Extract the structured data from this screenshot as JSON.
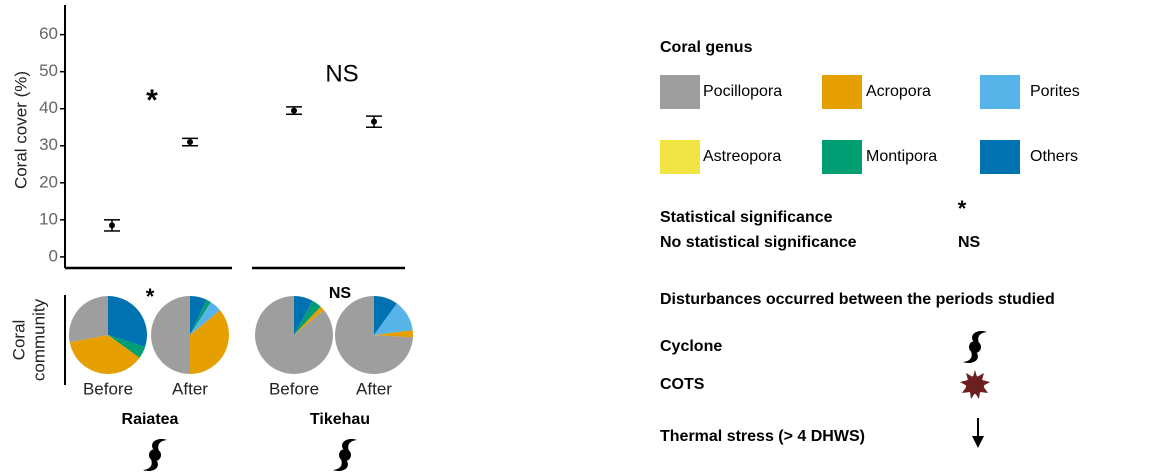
{
  "chart_data": [
    {
      "type": "errorbar",
      "ylabel": "Coral cover (%)",
      "ylim": [
        -3,
        68
      ],
      "yticks": [
        0,
        10,
        20,
        30,
        40,
        50,
        60
      ],
      "values": [
        8.5,
        31,
        39.5,
        36.5
      ],
      "errors": [
        1.5,
        1,
        1,
        1.5
      ],
      "annotations": [
        "*",
        "NS"
      ]
    },
    {
      "type": "pie",
      "ylabel_lines": [
        "Coral",
        "community"
      ],
      "categories": [
        "Before",
        "After",
        "Before",
        "After"
      ],
      "groups": [
        "Raiatea",
        "Tikehau"
      ],
      "annotations": [
        "*",
        "NS"
      ],
      "legend_title": "Coral genus",
      "series": [
        {
          "name": "Pocillopora",
          "color": "#9e9e9e",
          "values": [
            28,
            50,
            86,
            74
          ]
        },
        {
          "name": "Acropora",
          "color": "#e69f00",
          "values": [
            37,
            36,
            2,
            3
          ]
        },
        {
          "name": "Porites",
          "color": "#56b4e9",
          "values": [
            0,
            5,
            0,
            13
          ]
        },
        {
          "name": "Astreopora",
          "color": "#f0e442",
          "values": [
            0,
            0,
            0,
            0
          ]
        },
        {
          "name": "Montipora",
          "color": "#009e73",
          "values": [
            5,
            2,
            4,
            0
          ]
        },
        {
          "name": "Others",
          "color": "#0072b2",
          "values": [
            30,
            7,
            8,
            10
          ]
        }
      ]
    }
  ],
  "key": {
    "significance": "Statistical significance",
    "significance_symbol": "*",
    "no_significance": "No statistical significance",
    "no_significance_symbol": "NS",
    "disturbances": "Disturbances occurred  between the periods studied",
    "cyclone": "Cyclone",
    "cots": "COTS",
    "thermal": "Thermal stress (> 4 DHWS)"
  }
}
